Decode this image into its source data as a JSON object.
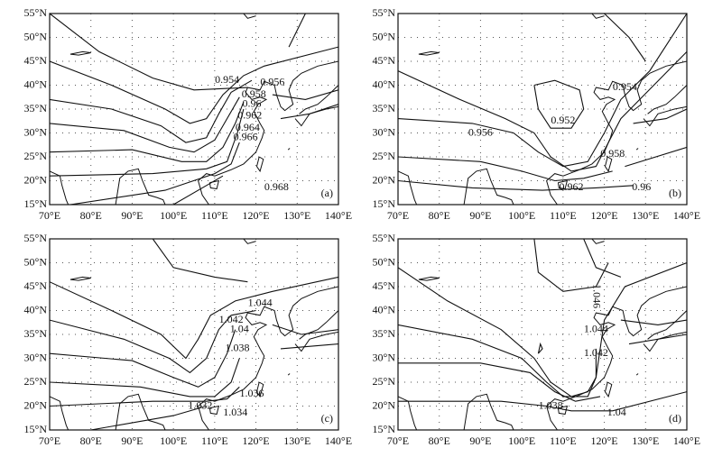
{
  "lat_ticks": [
    {
      "value": 15,
      "label": "15°N"
    },
    {
      "value": 20,
      "label": "20°N"
    },
    {
      "value": 25,
      "label": "25°N"
    },
    {
      "value": 30,
      "label": "30°N"
    },
    {
      "value": 35,
      "label": "35°N"
    },
    {
      "value": 40,
      "label": "40°N"
    },
    {
      "value": 45,
      "label": "45°N"
    },
    {
      "value": 50,
      "label": "50°N"
    },
    {
      "value": 55,
      "label": "55°N"
    }
  ],
  "lon_ticks": [
    {
      "value": 70,
      "label": "70°E"
    },
    {
      "value": 80,
      "label": "80°E"
    },
    {
      "value": 90,
      "label": "90°E"
    },
    {
      "value": 100,
      "label": "100°E"
    },
    {
      "value": 110,
      "label": "110°E"
    },
    {
      "value": 120,
      "label": "120°E"
    },
    {
      "value": 130,
      "label": "130°E"
    },
    {
      "value": 140,
      "label": "140°E"
    }
  ],
  "panels": [
    {
      "label": "(a)",
      "contour_labels": [
        "0.954",
        "0.956",
        "0.958",
        "0.96",
        "0.962",
        "0.964",
        "0.966",
        "0.968"
      ]
    },
    {
      "label": "(b)",
      "contour_labels": [
        "0.956",
        "0.952",
        "0.954",
        "0.958",
        "0.962",
        "0.96"
      ]
    },
    {
      "label": "(c)",
      "contour_labels": [
        "1.044",
        "1.042",
        "1.04",
        "1.038",
        "1.036",
        "1.032",
        "1.034"
      ]
    },
    {
      "label": "(d)",
      "contour_labels": [
        "1.046",
        "1.044",
        "1.042",
        "1.038",
        "1.04"
      ]
    }
  ]
}
